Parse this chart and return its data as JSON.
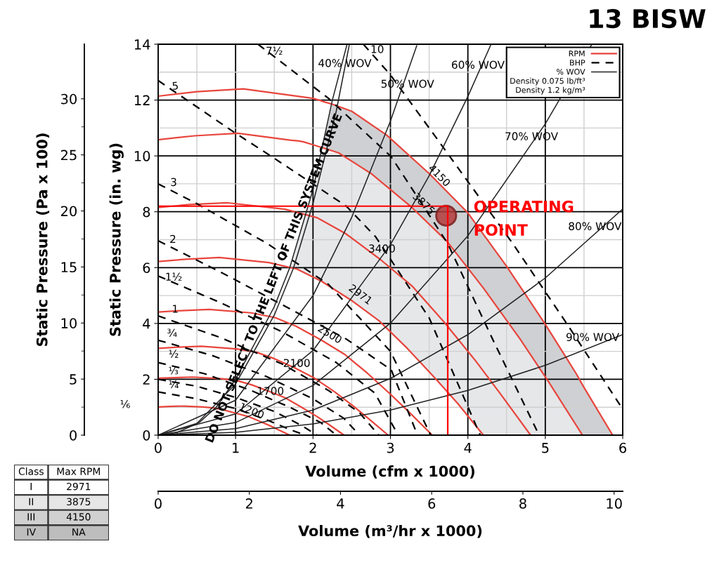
{
  "chart_data": {
    "type": "line",
    "title": "13 BISW",
    "xlabel": "Volume (cfm x 1000)",
    "ylabel": "Static Pressure (in. wg)",
    "y2label": "Static Pressure (Pa x 100)",
    "x2label": "Volume (m³/hr x 1000)",
    "xlim": [
      0,
      6
    ],
    "xticks": [
      0,
      {
        "value": 0.5,
        "label": null
      },
      1,
      {
        "value": 1.5,
        "label": null
      },
      2,
      {
        "value": 2.5,
        "label": null
      },
      3,
      {
        "value": 3.5,
        "label": null
      },
      4,
      {
        "value": 4.5,
        "label": null
      },
      5,
      {
        "value": 5.5,
        "label": null
      },
      6
    ],
    "ylim": [
      0,
      14
    ],
    "yticks": [
      0,
      {
        "value": 1,
        "label": null
      },
      2,
      {
        "value": 3,
        "label": null
      },
      4,
      {
        "value": 5,
        "label": null
      },
      6,
      {
        "value": 7,
        "label": null
      },
      8,
      {
        "value": 9,
        "label": null
      },
      10,
      {
        "value": 11,
        "label": null
      },
      12,
      {
        "value": 13,
        "label": null
      },
      14
    ],
    "y2lim": [
      0,
      34.87
    ],
    "y2ticks": [
      0,
      {
        "value": 2.5,
        "label": null
      },
      5,
      {
        "value": 7.5,
        "label": null
      },
      10,
      {
        "value": 12.5,
        "label": null
      },
      15,
      {
        "value": 17.5,
        "label": null
      },
      20,
      {
        "value": 22.5,
        "label": null
      },
      25,
      {
        "value": 27.5,
        "label": null
      },
      30
    ],
    "x2lim": [
      0,
      10.19
    ],
    "x2ticks": [
      0,
      2,
      4,
      6,
      8,
      10
    ],
    "grid": true,
    "legend": "top right",
    "line_style": "solid",
    "marker": "none",
    "series": [
      {
        "name": "RPM",
        "color": "#e8453c",
        "x": [
          0,
          0.5,
          1.1,
          2,
          2.1,
          2.15,
          2.25,
          2.5,
          2.95,
          3.5,
          4,
          4.5,
          5,
          5.4,
          5.48,
          5.87
        ],
        "values": [
          12.14,
          12.3,
          12.4,
          12.06,
          11.98,
          11.93,
          11.85,
          11.6,
          10.75,
          9.37,
          7.96,
          6.05,
          3.97,
          2.2,
          1.8,
          0
        ],
        "upper": [
          null,
          null,
          null,
          null,
          10.3,
          10.7,
          11.85,
          11.6,
          10.75,
          9.37,
          7.96,
          6.05,
          3.97,
          2.2,
          1.8,
          0
        ],
        "lower": [
          null,
          null,
          null,
          null,
          10.3,
          10.26,
          10.18,
          9.81,
          8.91,
          7.55,
          5.98,
          4.11,
          2.09,
          0.35,
          0,
          0
        ]
      },
      {
        "color": "#e8453c",
        "x": [
          0,
          0.47,
          1.03,
          1.72,
          1.8,
          1.87,
          2.0,
          2.1,
          2.33,
          2.75,
          3.27,
          3.73,
          4.2,
          4.67,
          5.04,
          5.48
        ],
        "values": [
          10.58,
          10.72,
          10.81,
          10.56,
          10.54,
          10.51,
          10.4,
          10.31,
          10.11,
          9.37,
          8.17,
          6.94,
          5.27,
          3.46,
          1.92,
          0
        ],
        "upper": [
          null,
          null,
          null,
          6.0,
          6.93,
          7.6,
          8.8,
          10.1,
          10.11,
          9.37,
          8.17,
          6.94,
          5.27,
          3.46,
          1.92,
          0
        ],
        "lower": [
          null,
          null,
          null,
          6.0,
          5.94,
          5.85,
          5.66,
          5.52,
          5.12,
          4.31,
          2.95,
          1.56,
          0,
          0,
          0,
          0
        ]
      },
      {
        "color": "#e8453c",
        "x": [
          0,
          0.41,
          0.9,
          1.64,
          2.05,
          2.42,
          2.87,
          3.28,
          3.69,
          4.1,
          4.42,
          4.81
        ],
        "values": [
          8.15,
          8.26,
          8.32,
          8.09,
          7.79,
          7.22,
          6.29,
          5.34,
          4.06,
          2.66,
          1.48,
          0
        ]
      },
      {
        "color": "#e8453c",
        "x": [
          0,
          0.36,
          0.79,
          1.43,
          1.79,
          2.11,
          2.51,
          2.86,
          3.22,
          3.58,
          3.87,
          4.2
        ],
        "values": [
          6.22,
          6.3,
          6.36,
          6.18,
          5.95,
          5.51,
          4.8,
          4.08,
          3.1,
          2.03,
          1.13,
          0
        ]
      },
      {
        "color": "#e8453c",
        "x": [
          0,
          0.3,
          0.66,
          1.2,
          1.51,
          1.78,
          2.11,
          2.41,
          2.71,
          3.01,
          3.25,
          3.54
        ],
        "values": [
          4.41,
          4.46,
          4.5,
          4.38,
          4.21,
          3.9,
          3.4,
          2.89,
          2.2,
          1.44,
          0.8,
          0
        ]
      },
      {
        "color": "#e8453c",
        "x": [
          0,
          0.25,
          0.56,
          1.01,
          1.27,
          1.49,
          1.77,
          2.02,
          2.28,
          2.53,
          2.73,
          2.97
        ],
        "values": [
          3.11,
          3.15,
          3.18,
          3.09,
          2.97,
          2.75,
          2.4,
          2.04,
          1.55,
          1.02,
          0.56,
          0
        ]
      },
      {
        "color": "#e8453c",
        "x": [
          0,
          0.2,
          0.45,
          0.82,
          1.02,
          1.21,
          1.43,
          1.64,
          1.84,
          2.05,
          2.21,
          2.4
        ],
        "values": [
          2.04,
          2.06,
          2.08,
          2.02,
          1.95,
          1.8,
          1.57,
          1.34,
          1.02,
          0.67,
          0.37,
          0
        ]
      },
      {
        "color": "#e8453c",
        "x": [
          0,
          0.14,
          0.32,
          0.58,
          0.72,
          0.85,
          1.01,
          1.16,
          1.3,
          1.45,
          1.56,
          1.7
        ],
        "values": [
          1.01,
          1.03,
          1.04,
          1.01,
          0.97,
          0.9,
          0.78,
          0.67,
          0.51,
          0.33,
          0.18,
          0
        ]
      },
      {
        "name": "BHP",
        "color": "#000000",
        "line_style": "dashed",
        "x": [
          2.65,
          3.0,
          3.5,
          4.58,
          5.3,
          6.0
        ],
        "values": [
          14,
          12.9,
          11.0,
          6.86,
          3.9,
          0.93
        ]
      },
      {
        "color": "#000000",
        "line_style": "dashed",
        "x": [
          1.29,
          2.2,
          3.01,
          3.74,
          4.3,
          4.92
        ],
        "values": [
          14,
          12.06,
          9.97,
          6.86,
          3.55,
          0
        ]
      },
      {
        "color": "#000000",
        "line_style": "dashed",
        "x": [
          0,
          0.98,
          1.47,
          2.43,
          2.81,
          3.5,
          4.16
        ],
        "values": [
          12.7,
          10.85,
          9.97,
          8.2,
          7.1,
          4.2,
          0
        ]
      },
      {
        "color": "#000000",
        "line_style": "dashed",
        "x": [
          0,
          0.5,
          1.41,
          2.2,
          3.0,
          3.52
        ],
        "values": [
          9.0,
          8.29,
          6.86,
          5.4,
          3.0,
          0
        ]
      },
      {
        "color": "#000000",
        "line_style": "dashed",
        "x": [
          0,
          0.8,
          1.65,
          2.43,
          3.01,
          3.35
        ],
        "values": [
          6.96,
          5.85,
          4.6,
          3.44,
          2.34,
          0
        ]
      },
      {
        "color": "#000000",
        "line_style": "dashed",
        "x": [
          0,
          0.8,
          1.6,
          2.3,
          2.8,
          3.1
        ],
        "values": [
          5.7,
          4.75,
          3.7,
          2.6,
          1.5,
          0
        ]
      },
      {
        "color": "#000000",
        "line_style": "dashed",
        "x": [
          0,
          0.8,
          1.6,
          2.2,
          2.6,
          2.85
        ],
        "values": [
          4.27,
          3.5,
          2.55,
          1.6,
          0.8,
          0
        ]
      },
      {
        "color": "#000000",
        "line_style": "dashed",
        "x": [
          0,
          0.7,
          1.4,
          2.0,
          2.4,
          2.6
        ],
        "values": [
          3.4,
          2.85,
          2.1,
          1.3,
          0.6,
          0
        ]
      },
      {
        "color": "#000000",
        "line_style": "dashed",
        "x": [
          0,
          0.6,
          1.2,
          1.7,
          2.1,
          2.3
        ],
        "values": [
          2.6,
          2.2,
          1.6,
          1.0,
          0.45,
          0
        ]
      },
      {
        "color": "#000000",
        "line_style": "dashed",
        "x": [
          0,
          0.5,
          1.0,
          1.5,
          1.85,
          2.05
        ],
        "values": [
          2.0,
          1.75,
          1.35,
          0.85,
          0.35,
          0
        ]
      },
      {
        "color": "#000000",
        "line_style": "dashed",
        "x": [
          0,
          0.5,
          1.0,
          1.4,
          1.7,
          1.9
        ],
        "values": [
          1.55,
          1.3,
          0.95,
          0.55,
          0.2,
          0
        ]
      },
      {
        "color": "#222222",
        "x": [
          0,
          0.25,
          0.53,
          0.75,
          1,
          1.5,
          1.7,
          2,
          2.25,
          2.44
        ],
        "values": [
          0,
          0.1,
          0.45,
          1.0,
          2.0,
          4.6,
          6.0,
          8.8,
          12,
          14
        ]
      },
      {
        "name": "% WOV",
        "color": "#222222",
        "x": [
          0,
          0.5,
          1,
          1.5,
          1.75,
          2,
          2.3,
          2.47
        ],
        "values": [
          0,
          0.42,
          1.83,
          4.3,
          6.0,
          8.3,
          11.6,
          14
        ]
      },
      {
        "color": "#222222",
        "x": [
          0,
          1,
          2,
          2.5,
          3,
          3.34
        ],
        "values": [
          0,
          1.25,
          5,
          7.8,
          11.25,
          13.95
        ]
      },
      {
        "color": "#222222",
        "x": [
          0,
          1,
          2,
          3,
          3.5,
          4,
          4.3
        ],
        "values": [
          0,
          0.76,
          3.03,
          6.82,
          9.29,
          12.13,
          14.0
        ]
      },
      {
        "color": "#222222",
        "x": [
          0,
          1,
          2,
          3,
          4,
          5,
          5.6
        ],
        "values": [
          0,
          0.45,
          1.78,
          4.01,
          7.14,
          11.15,
          13.99
        ]
      },
      {
        "color": "#222222",
        "x": [
          0,
          1,
          2,
          3,
          4,
          5,
          6
        ],
        "values": [
          0,
          0.23,
          0.9,
          2.03,
          3.6,
          5.63,
          8.1
        ]
      },
      {
        "color": "#222222",
        "x": [
          0,
          1,
          2,
          3,
          4,
          5,
          6
        ],
        "values": [
          0,
          0.1,
          0.4,
          0.9,
          1.6,
          2.5,
          3.6
        ]
      },
      {
        "color": "#ff0000",
        "x": [
          0,
          3.74,
          3.74
        ],
        "values": [
          8.2,
          8.2,
          0
        ]
      },
      {
        "type": "scatter",
        "color": "#b23a3a",
        "marker": "circle",
        "x": [
          3.72
        ],
        "values": [
          7.86
        ]
      }
    ],
    "annotations": [
      "Density 0.075 lb/ft³",
      "Density 1.2 kg/m³",
      "Class",
      "Max RPM",
      "I",
      "2971",
      "II",
      "3875",
      "III",
      "4150",
      "IV",
      "NA",
      "⅙",
      {
        "text": "4150",
        "x": 3.58,
        "y": 9.05
      },
      {
        "text": "3875",
        "x": 3.38,
        "y": 8.04
      },
      {
        "text": "3400",
        "x": 2.89,
        "y": 6.36
      },
      {
        "text": "2971",
        "x": 2.57,
        "y": 4.77
      },
      {
        "text": "2500",
        "x": 2.18,
        "y": 3.34
      },
      {
        "text": "2100",
        "x": 1.79,
        "y": 2.26
      },
      {
        "text": "1700",
        "x": 1.45,
        "y": 1.26
      },
      {
        "text": "1200",
        "x": 1.18,
        "y": 0.58
      },
      {
        "text": "10",
        "x": 2.83,
        "y": 13.5
      },
      {
        "text": "7½",
        "x": 1.5,
        "y": 13.44
      },
      {
        "text": "5",
        "x": 0.23,
        "y": 12.2
      },
      {
        "text": "3",
        "x": 0.2,
        "y": 8.74
      },
      {
        "text": "2",
        "x": 0.19,
        "y": 6.7
      },
      {
        "text": "1½",
        "x": 0.2,
        "y": 5.35
      },
      {
        "text": "1",
        "x": 0.22,
        "y": 4.2
      },
      {
        "text": "¾",
        "x": 0.18,
        "y": 3.34
      },
      {
        "text": "½",
        "x": 0.2,
        "y": 2.59
      },
      {
        "text": "⅓",
        "x": 0.2,
        "y": 2.0
      },
      {
        "text": "¼",
        "x": 0.2,
        "y": 1.5
      },
      {
        "text": "40% WOV",
        "x": 2.41,
        "y": 13.0
      },
      {
        "text": "50% WOV",
        "x": 3.22,
        "y": 12.26
      },
      {
        "text": "60% WOV",
        "x": 4.13,
        "y": 12.94
      },
      {
        "text": "70% WOV",
        "x": 4.82,
        "y": 10.38
      },
      {
        "text": "80% WOV",
        "x": 5.64,
        "y": 7.16
      },
      {
        "text": "90% WOV",
        "x": 5.61,
        "y": 3.19
      },
      {
        "text": "DO NOT SELECT TO THE LEFT OF THIS SYSTEM CURVE",
        "x": 1.62,
        "y": 5.4
      },
      {
        "text": "OPERATING POINT",
        "x": 3.72,
        "y": 7.86
      }
    ]
  }
}
